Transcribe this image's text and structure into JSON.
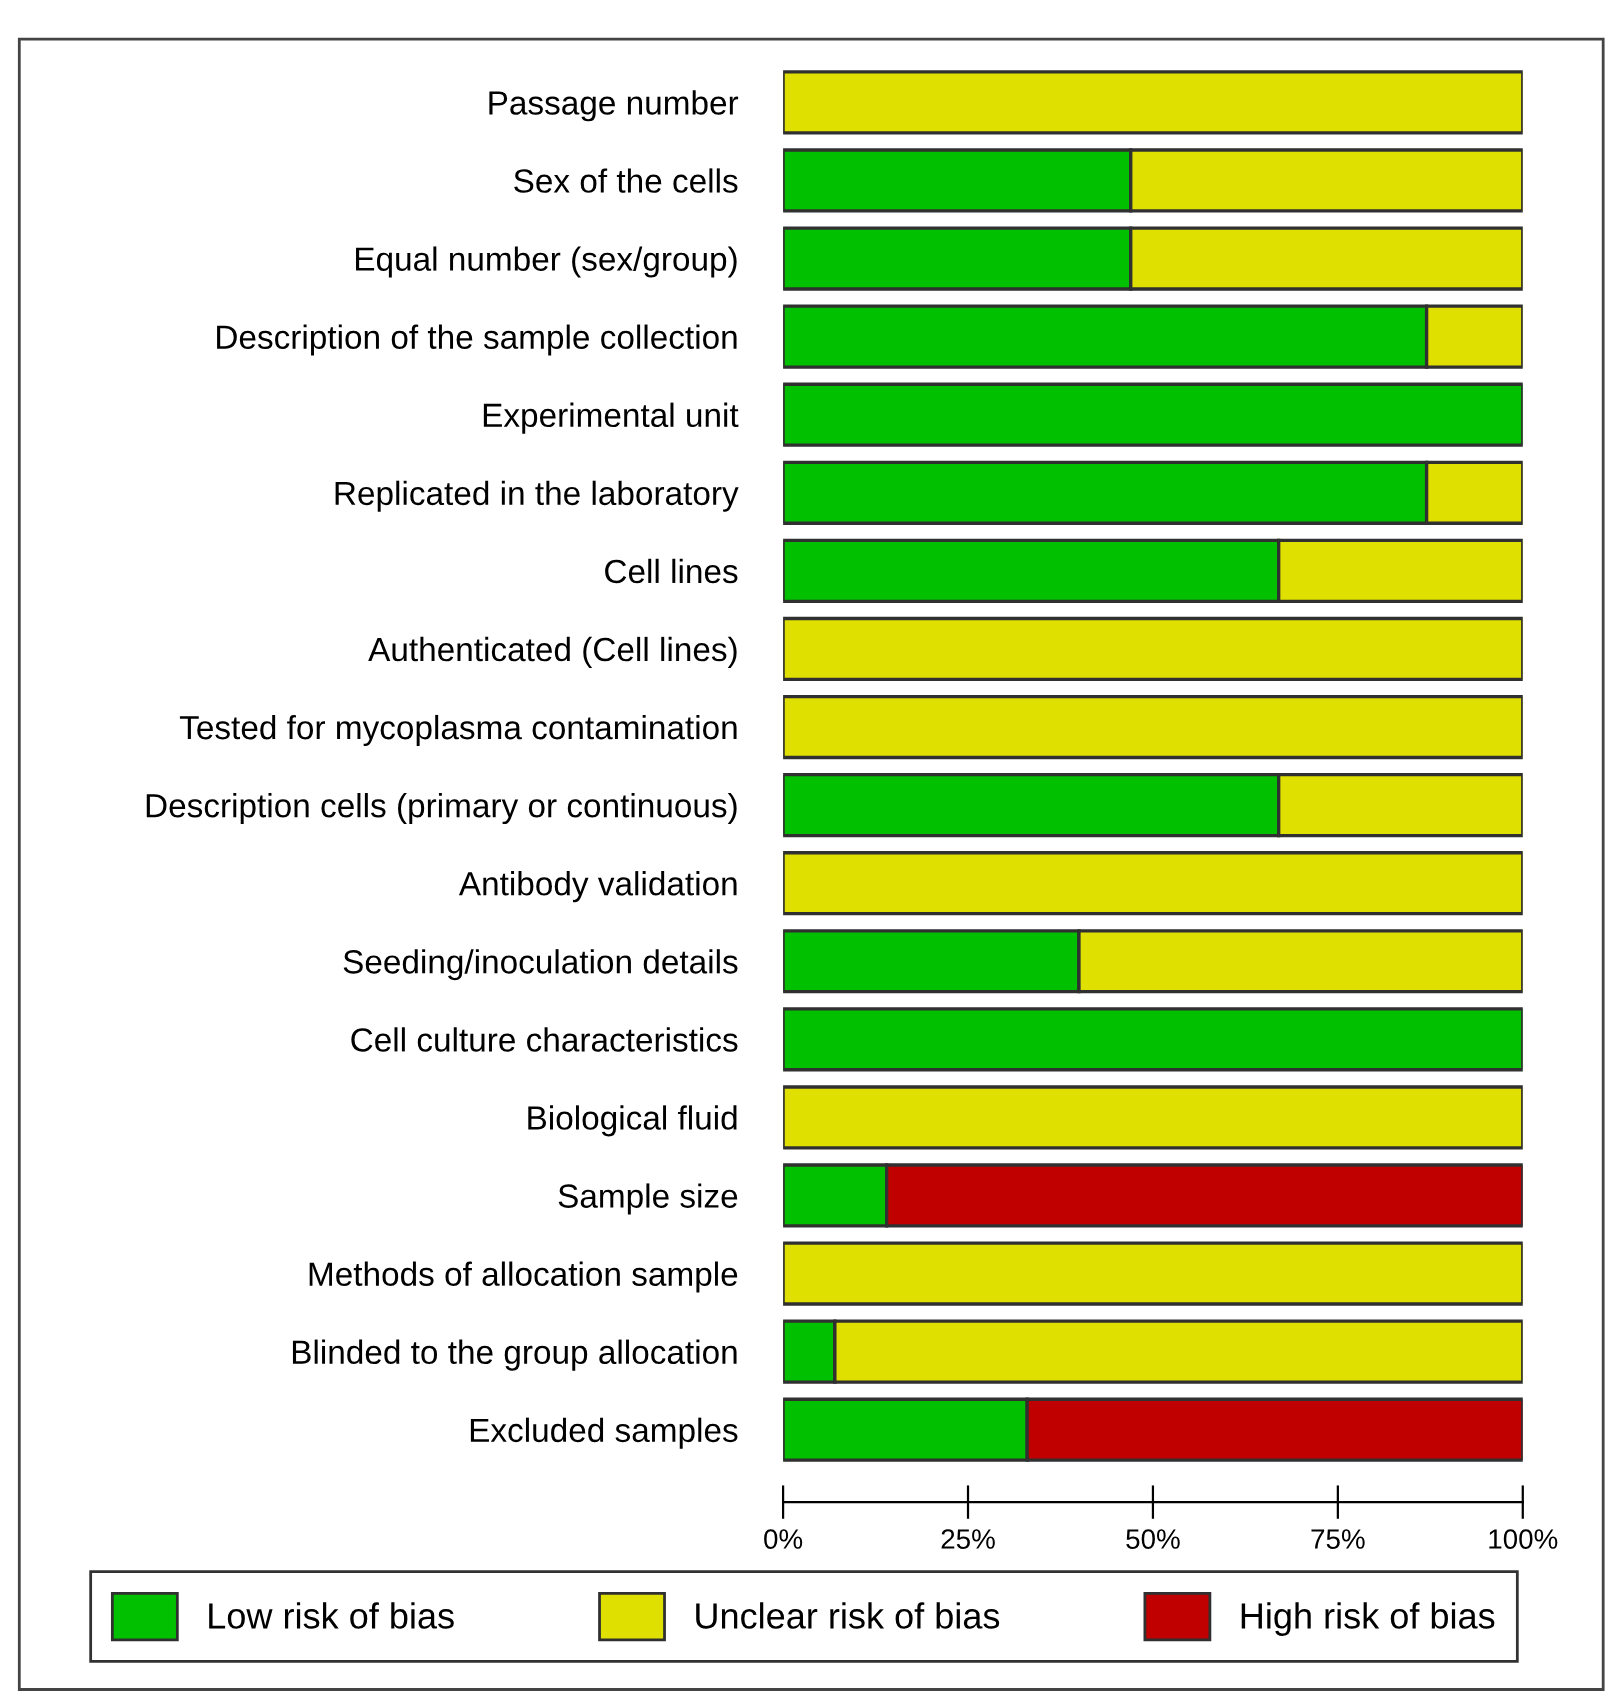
{
  "chart_data": {
    "type": "bar",
    "orientation": "horizontal",
    "stacked": true,
    "categories": [
      "Passage number",
      "Sex of the cells",
      "Equal number (sex/group)",
      "Description of the sample collection",
      "Experimental unit",
      "Replicated in the laboratory",
      "Cell lines",
      "Authenticated (Cell lines)",
      "Tested for mycoplasma contamination",
      "Description cells (primary or continuous)",
      "Antibody validation",
      "Seeding/inoculation details",
      "Cell culture characteristics",
      "Biological fluid",
      "Sample size",
      "Methods of allocation sample",
      "Blinded to the group allocation",
      "Excluded samples"
    ],
    "series": [
      {
        "name": "Low risk of bias",
        "color": "#00c000",
        "values": [
          null,
          47,
          47,
          87,
          100,
          87,
          67,
          null,
          null,
          67,
          null,
          40,
          100,
          null,
          14,
          null,
          7,
          33
        ]
      },
      {
        "name": "Unclear risk of bias",
        "color": "#e0e000",
        "values": [
          100,
          53,
          53,
          13,
          null,
          13,
          33,
          100,
          100,
          33,
          100,
          60,
          null,
          100,
          null,
          100,
          93,
          null
        ]
      },
      {
        "name": "High risk of bias",
        "color": "#c00000",
        "values": [
          null,
          null,
          null,
          null,
          null,
          null,
          null,
          null,
          null,
          null,
          null,
          null,
          null,
          null,
          86,
          null,
          null,
          67
        ]
      }
    ],
    "xlim": [
      0,
      100
    ],
    "xticks": [
      {
        "value": 0,
        "label": "0%"
      },
      {
        "value": 25,
        "label": "25%"
      },
      {
        "value": 50,
        "label": "50%"
      },
      {
        "value": 75,
        "label": "75%"
      },
      {
        "value": 100,
        "label": "100%"
      }
    ],
    "grid": false,
    "legend": "bottom"
  }
}
